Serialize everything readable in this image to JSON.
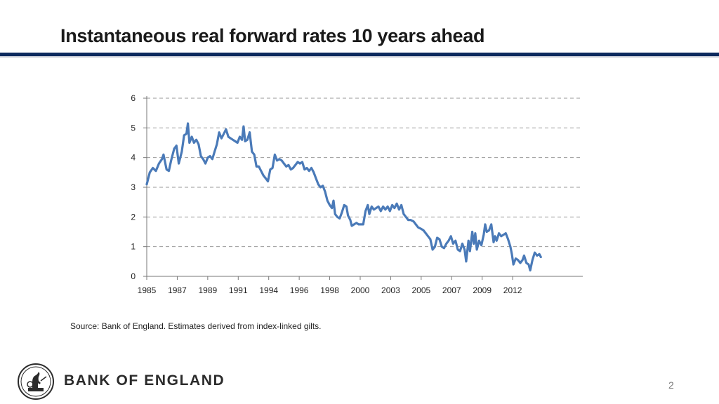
{
  "title": "Instantaneous real forward rates 10 years ahead",
  "source": "Source: Bank of England. Estimates derived from index-linked gilts.",
  "brand": "BANK OF ENGLAND",
  "page_number": "2",
  "colors": {
    "series": "#4a7ab8",
    "rule": "#0d2a5e",
    "grid": "#9a9a9a"
  },
  "chart_data": {
    "type": "line",
    "title": "",
    "xlabel": "",
    "ylabel": "",
    "xlim": [
      1985.0,
      2013.6
    ],
    "ylim": [
      0,
      6
    ],
    "grid": true,
    "y_ticks": [
      0,
      1,
      2,
      3,
      4,
      5,
      6
    ],
    "x_ticks": [
      {
        "value": 1985,
        "label": "1985"
      },
      {
        "value": 1987,
        "label": "1987"
      },
      {
        "value": 1989,
        "label": "1989"
      },
      {
        "value": 1991,
        "label": "1991"
      },
      {
        "value": 1993,
        "label": "1994"
      },
      {
        "value": 1995,
        "label": "1996"
      },
      {
        "value": 1997,
        "label": "1998"
      },
      {
        "value": 1999,
        "label": "2000"
      },
      {
        "value": 2001,
        "label": "2003"
      },
      {
        "value": 2003,
        "label": "2005"
      },
      {
        "value": 2005,
        "label": "2007"
      },
      {
        "value": 2007,
        "label": "2009"
      },
      {
        "value": 2009,
        "label": "2012"
      }
    ],
    "series": [
      {
        "name": "Instantaneous real forward rate",
        "points": [
          [
            1985.0,
            3.1
          ],
          [
            1985.2,
            3.5
          ],
          [
            1985.4,
            3.65
          ],
          [
            1985.6,
            3.55
          ],
          [
            1985.8,
            3.8
          ],
          [
            1986.0,
            3.95
          ],
          [
            1986.1,
            4.1
          ],
          [
            1986.3,
            3.6
          ],
          [
            1986.45,
            3.55
          ],
          [
            1986.6,
            3.9
          ],
          [
            1986.8,
            4.3
          ],
          [
            1986.95,
            4.4
          ],
          [
            1987.1,
            3.8
          ],
          [
            1987.3,
            4.2
          ],
          [
            1987.45,
            4.75
          ],
          [
            1987.6,
            4.8
          ],
          [
            1987.7,
            5.15
          ],
          [
            1987.8,
            4.5
          ],
          [
            1987.95,
            4.7
          ],
          [
            1988.1,
            4.5
          ],
          [
            1988.25,
            4.6
          ],
          [
            1988.4,
            4.45
          ],
          [
            1988.55,
            4.05
          ],
          [
            1988.7,
            3.95
          ],
          [
            1988.85,
            3.8
          ],
          [
            1989.0,
            4.0
          ],
          [
            1989.15,
            4.05
          ],
          [
            1989.3,
            3.95
          ],
          [
            1989.45,
            4.2
          ],
          [
            1989.6,
            4.45
          ],
          [
            1989.75,
            4.85
          ],
          [
            1989.9,
            4.65
          ],
          [
            1990.05,
            4.8
          ],
          [
            1990.2,
            4.95
          ],
          [
            1990.35,
            4.7
          ],
          [
            1990.5,
            4.65
          ],
          [
            1990.65,
            4.6
          ],
          [
            1990.8,
            4.55
          ],
          [
            1990.95,
            4.5
          ],
          [
            1991.1,
            4.7
          ],
          [
            1991.25,
            4.6
          ],
          [
            1991.35,
            5.05
          ],
          [
            1991.45,
            4.55
          ],
          [
            1991.6,
            4.6
          ],
          [
            1991.75,
            4.85
          ],
          [
            1991.9,
            4.2
          ],
          [
            1992.05,
            4.1
          ],
          [
            1992.2,
            3.7
          ],
          [
            1992.35,
            3.7
          ],
          [
            1992.5,
            3.55
          ],
          [
            1992.65,
            3.4
          ],
          [
            1992.8,
            3.3
          ],
          [
            1992.95,
            3.2
          ],
          [
            1993.1,
            3.6
          ],
          [
            1993.25,
            3.65
          ],
          [
            1993.4,
            4.1
          ],
          [
            1993.55,
            3.9
          ],
          [
            1993.7,
            3.95
          ],
          [
            1993.85,
            3.9
          ],
          [
            1994.0,
            3.8
          ],
          [
            1994.15,
            3.7
          ],
          [
            1994.3,
            3.75
          ],
          [
            1994.45,
            3.6
          ],
          [
            1994.6,
            3.65
          ],
          [
            1994.75,
            3.75
          ],
          [
            1994.9,
            3.85
          ],
          [
            1995.05,
            3.8
          ],
          [
            1995.2,
            3.85
          ],
          [
            1995.35,
            3.6
          ],
          [
            1995.5,
            3.65
          ],
          [
            1995.65,
            3.55
          ],
          [
            1995.8,
            3.65
          ],
          [
            1995.95,
            3.5
          ],
          [
            1996.1,
            3.3
          ],
          [
            1996.25,
            3.1
          ],
          [
            1996.4,
            3.0
          ],
          [
            1996.55,
            3.05
          ],
          [
            1996.7,
            2.85
          ],
          [
            1996.85,
            2.55
          ],
          [
            1997.0,
            2.4
          ],
          [
            1997.15,
            2.3
          ],
          [
            1997.25,
            2.55
          ],
          [
            1997.35,
            2.1
          ],
          [
            1997.5,
            2.0
          ],
          [
            1997.65,
            1.95
          ],
          [
            1997.8,
            2.15
          ],
          [
            1997.95,
            2.4
          ],
          [
            1998.1,
            2.35
          ],
          [
            1998.2,
            2.05
          ],
          [
            1998.35,
            1.9
          ],
          [
            1998.45,
            1.7
          ],
          [
            1998.6,
            1.75
          ],
          [
            1998.75,
            1.8
          ],
          [
            1998.9,
            1.75
          ],
          [
            1999.05,
            1.75
          ],
          [
            1999.2,
            1.75
          ],
          [
            1999.35,
            2.2
          ],
          [
            1999.5,
            2.4
          ],
          [
            1999.6,
            2.1
          ],
          [
            1999.75,
            2.35
          ],
          [
            1999.9,
            2.25
          ],
          [
            2000.05,
            2.3
          ],
          [
            2000.2,
            2.35
          ],
          [
            2000.35,
            2.2
          ],
          [
            2000.5,
            2.35
          ],
          [
            2000.65,
            2.25
          ],
          [
            2000.8,
            2.35
          ],
          [
            2000.95,
            2.2
          ],
          [
            2001.1,
            2.4
          ],
          [
            2001.25,
            2.3
          ],
          [
            2001.4,
            2.45
          ],
          [
            2001.55,
            2.25
          ],
          [
            2001.7,
            2.4
          ],
          [
            2001.85,
            2.1
          ],
          [
            2002.0,
            2.0
          ],
          [
            2002.15,
            1.9
          ],
          [
            2002.3,
            1.9
          ],
          [
            2002.5,
            1.85
          ],
          [
            2002.65,
            1.75
          ],
          [
            2002.8,
            1.65
          ],
          [
            2003.0,
            1.6
          ],
          [
            2003.15,
            1.55
          ],
          [
            2003.3,
            1.45
          ],
          [
            2003.45,
            1.35
          ],
          [
            2003.6,
            1.25
          ],
          [
            2003.75,
            0.9
          ],
          [
            2003.9,
            1.0
          ],
          [
            2004.05,
            1.3
          ],
          [
            2004.2,
            1.25
          ],
          [
            2004.35,
            1.0
          ],
          [
            2004.5,
            0.95
          ],
          [
            2004.65,
            1.1
          ],
          [
            2004.8,
            1.2
          ],
          [
            2004.95,
            1.35
          ],
          [
            2005.1,
            1.1
          ],
          [
            2005.25,
            1.2
          ],
          [
            2005.4,
            0.9
          ],
          [
            2005.55,
            0.85
          ],
          [
            2005.7,
            1.1
          ],
          [
            2005.85,
            0.9
          ],
          [
            2005.95,
            0.5
          ],
          [
            2006.1,
            1.2
          ],
          [
            2006.2,
            0.85
          ],
          [
            2006.35,
            1.5
          ],
          [
            2006.45,
            1.1
          ],
          [
            2006.55,
            1.45
          ],
          [
            2006.65,
            0.9
          ],
          [
            2006.8,
            1.2
          ],
          [
            2006.95,
            1.05
          ],
          [
            2007.1,
            1.4
          ],
          [
            2007.2,
            1.75
          ],
          [
            2007.3,
            1.5
          ],
          [
            2007.45,
            1.55
          ],
          [
            2007.6,
            1.75
          ],
          [
            2007.75,
            1.15
          ],
          [
            2007.85,
            1.35
          ],
          [
            2007.95,
            1.2
          ],
          [
            2008.1,
            1.45
          ],
          [
            2008.25,
            1.35
          ],
          [
            2008.4,
            1.4
          ],
          [
            2008.55,
            1.45
          ],
          [
            2008.7,
            1.25
          ],
          [
            2008.85,
            1.0
          ],
          [
            2008.95,
            0.75
          ],
          [
            2009.05,
            0.4
          ],
          [
            2009.2,
            0.6
          ],
          [
            2009.35,
            0.55
          ],
          [
            2009.5,
            0.45
          ],
          [
            2009.65,
            0.55
          ],
          [
            2009.75,
            0.7
          ],
          [
            2009.9,
            0.45
          ],
          [
            2010.05,
            0.4
          ],
          [
            2010.15,
            0.2
          ],
          [
            2010.3,
            0.55
          ],
          [
            2010.45,
            0.8
          ],
          [
            2010.6,
            0.7
          ],
          [
            2010.75,
            0.75
          ],
          [
            2010.85,
            0.65
          ]
        ]
      }
    ]
  }
}
